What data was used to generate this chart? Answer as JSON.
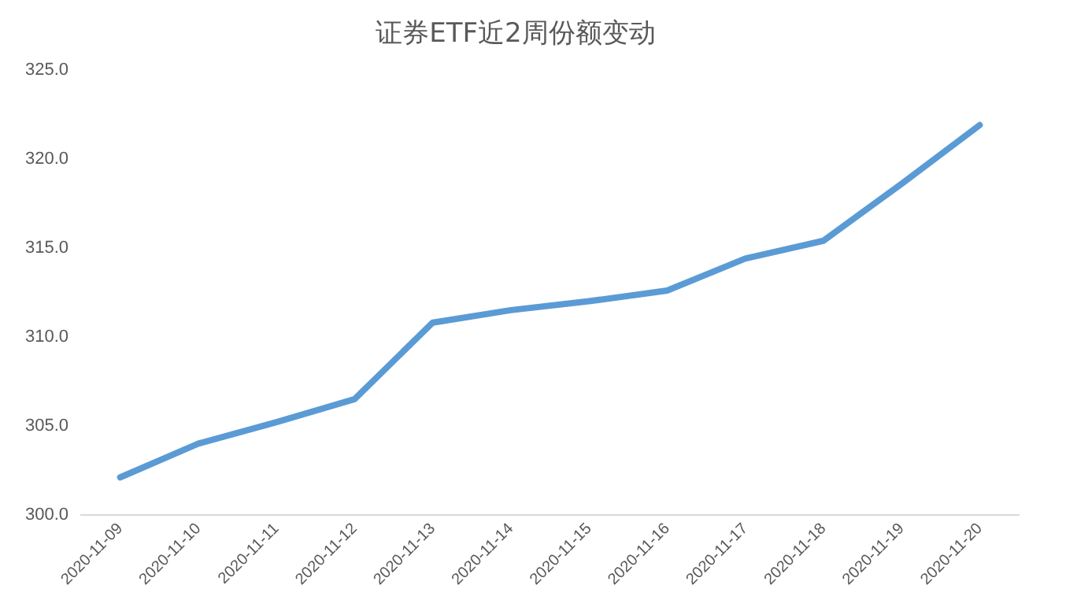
{
  "chart_data": {
    "type": "line",
    "title": "证券ETF近2周份额变动",
    "categories": [
      "2020-11-09",
      "2020-11-10",
      "2020-11-11",
      "2020-11-12",
      "2020-11-13",
      "2020-11-14",
      "2020-11-15",
      "2020-11-16",
      "2020-11-17",
      "2020-11-18",
      "2020-11-19",
      "2020-11-20"
    ],
    "series": [
      {
        "color": "#5b9bd5",
        "values": [
          302.1,
          304.0,
          305.2,
          306.5,
          310.8,
          311.5,
          312.0,
          312.6,
          314.4,
          315.4,
          318.6,
          321.9
        ]
      }
    ],
    "ylim": [
      300,
      325
    ],
    "yticks": [
      {
        "value": 300,
        "label": "300.0"
      },
      {
        "value": 305,
        "label": "305.0"
      },
      {
        "value": 310,
        "label": "310.0"
      },
      {
        "value": 315,
        "label": "315.0"
      },
      {
        "value": 320,
        "label": "320.0"
      },
      {
        "value": 325,
        "label": "325.0"
      }
    ],
    "grid": false,
    "legend": false,
    "marker": "none",
    "line_style": "solid"
  }
}
